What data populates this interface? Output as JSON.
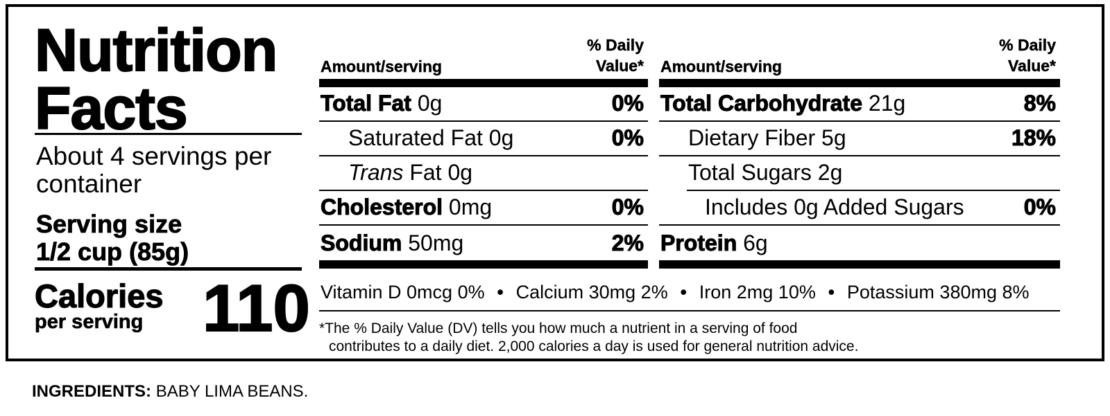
{
  "title_line1": "Nutrition",
  "title_line2": "Facts",
  "servings_per_container": "About 4 servings per container",
  "serving_size_label": "Serving size",
  "serving_size_value": "1/2 cup (85g)",
  "calories_label": "Calories",
  "calories_sublabel": "per serving",
  "calories_value": "110",
  "header": {
    "amount_label": "Amount/serving",
    "dv_label": "% Daily\nValue*"
  },
  "left_nutrients": [
    {
      "name": "Total Fat",
      "amount": "0g",
      "dv": "0%"
    },
    {
      "name": "Saturated Fat",
      "amount": "0g",
      "dv": "0%"
    },
    {
      "name_italic": "Trans",
      "name": "Fat",
      "amount": "0g",
      "dv": ""
    },
    {
      "name": "Cholesterol",
      "amount": "0mg",
      "dv": "0%"
    },
    {
      "name": "Sodium",
      "amount": "50mg",
      "dv": "2%"
    }
  ],
  "right_nutrients": [
    {
      "name": "Total Carbohydrate",
      "amount": "21g",
      "dv": "8%"
    },
    {
      "name": "Dietary Fiber",
      "amount": "5g",
      "dv": "18%"
    },
    {
      "name": "Total Sugars",
      "amount": "2g",
      "dv": ""
    },
    {
      "name": "Includes 0g Added Sugars",
      "amount": "",
      "dv": "0%"
    },
    {
      "name": "Protein",
      "amount": "6g",
      "dv": ""
    }
  ],
  "vitamins": [
    "Vitamin D 0mcg 0%",
    "Calcium 30mg 2%",
    "Iron 2mg 10%",
    "Potassium 380mg 8%"
  ],
  "vitamin_separator": "•",
  "footnote_line1": "*The % Daily Value (DV) tells you how much a nutrient in a serving of food",
  "footnote_line2": "contributes to a daily diet. 2,000 calories a day is used for general nutrition advice.",
  "ingredients_key": "INGREDIENTS:",
  "ingredients_value": "BABY LIMA BEANS."
}
